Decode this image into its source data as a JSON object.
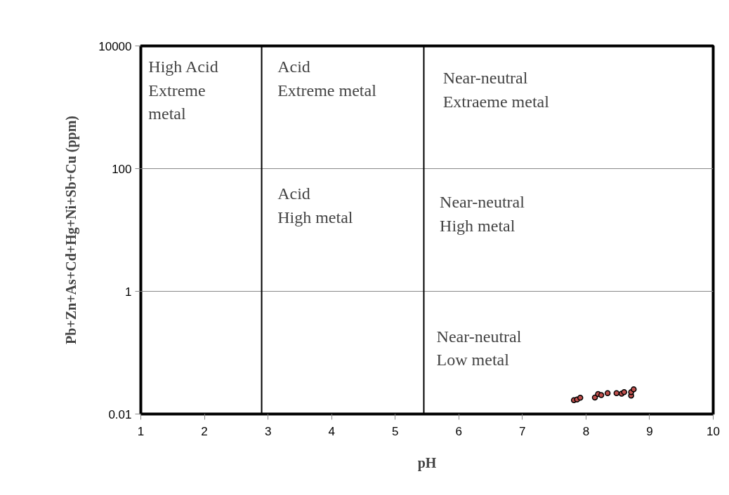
{
  "chart_data": {
    "type": "scatter",
    "xlabel": "pH",
    "ylabel": "Pb+Zn+As+Cd+Hg+Ni+Sb+Cu (ppm)",
    "x": [
      7.81,
      7.86,
      7.91,
      8.14,
      8.19,
      8.24,
      8.34,
      8.48,
      8.56,
      8.6,
      8.71,
      8.71,
      8.75
    ],
    "series": [
      {
        "color": "#c0504d",
        "values": [
          0.0168,
          0.0173,
          0.0184,
          0.0186,
          0.0212,
          0.0203,
          0.0219,
          0.0219,
          0.0215,
          0.0228,
          0.02,
          0.0228,
          0.0253
        ]
      }
    ],
    "xlim": [
      1,
      10
    ],
    "xticks": [
      1,
      2,
      3,
      4,
      5,
      6,
      7,
      8,
      9,
      10
    ],
    "ylim": [
      0.01,
      10000
    ],
    "yticks": [
      0.01,
      1,
      100,
      10000
    ],
    "log": "y",
    "grid": "y",
    "marker": "circle",
    "ref_lines": [
      {
        "axis": "x",
        "value": 2.9,
        "color": "#000000"
      },
      {
        "axis": "x",
        "value": 5.45,
        "color": "#000000"
      }
    ],
    "annotations": [
      "High Acid\nExtreme\nmetal",
      "Acid\nExtreme metal",
      "Near-neutral\nExtraeme metal",
      "Acid\nHigh metal",
      "Near-neutral\nHigh metal",
      "Near-neutral\nLow metal"
    ]
  }
}
